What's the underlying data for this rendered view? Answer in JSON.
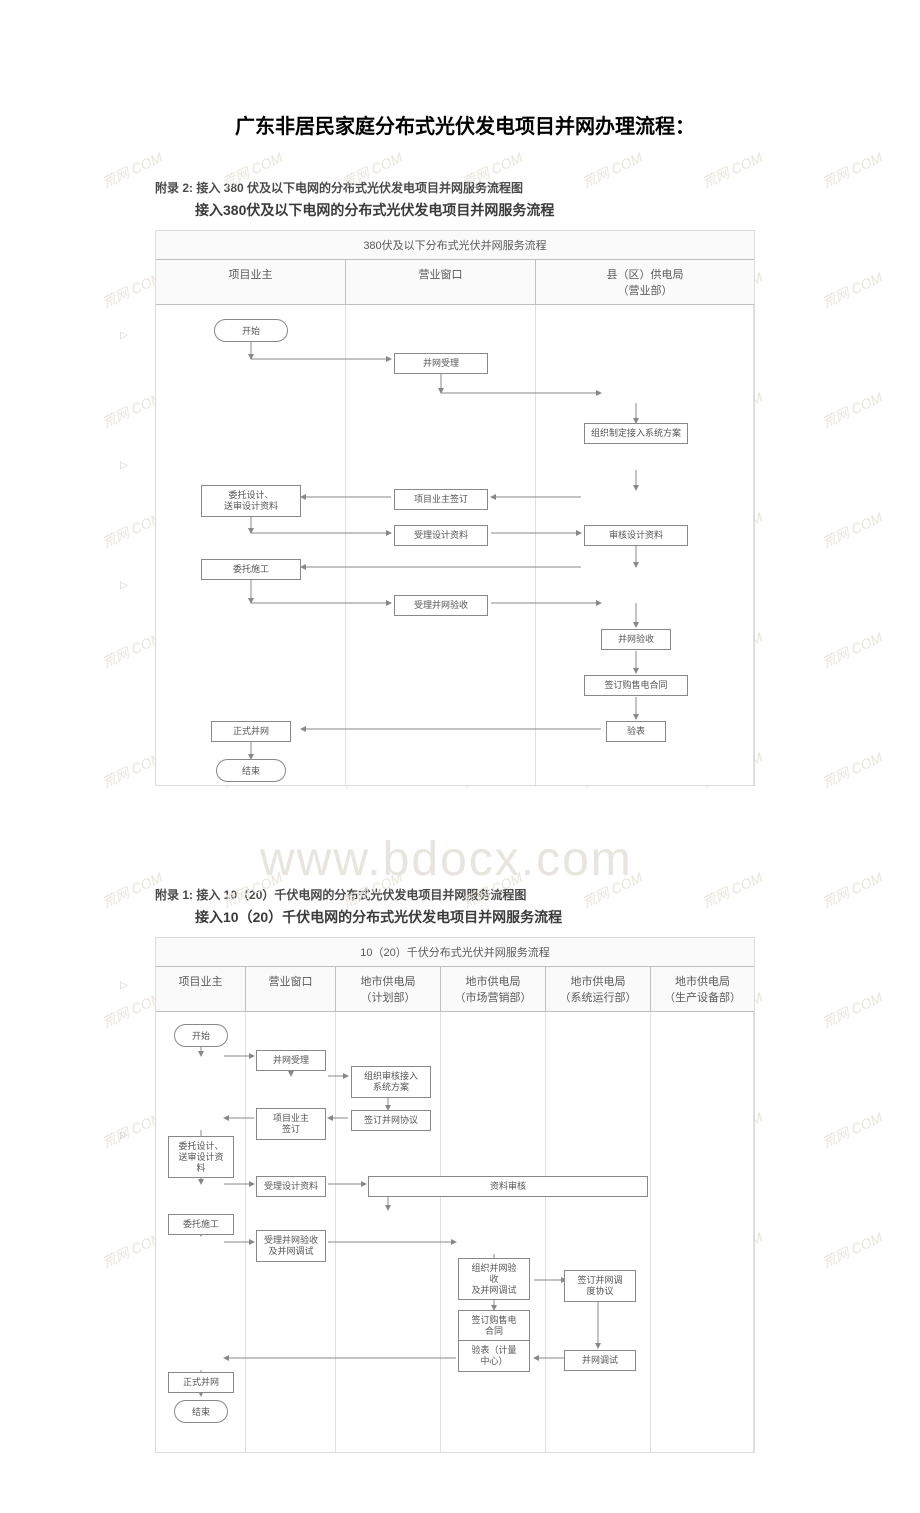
{
  "page_title": "广东非居民家庭分布式光伏发电项目并网办理流程：",
  "big_watermark": "www.bdocx.com",
  "small_watermark": "荒网 COM",
  "chart1": {
    "attachment_caption": "附录 2: 接入 380 伏及以下电网的分布式光伏发电项目并网服务流程图",
    "title": "接入380伏及以下电网的分布式光伏发电项目并网服务流程",
    "header_band": "380伏及以下分布式光伏并网服务流程",
    "lanes": [
      "项目业主",
      "营业窗口",
      "县（区）供电局\n（营业部）"
    ],
    "lane_widths": [
      190,
      190,
      218
    ],
    "nodes": {
      "start": "开始",
      "bwsl": "并网受理",
      "zzzd": "组织制定接入系统方案",
      "wtsj": "委托设计、\n送审设计资料",
      "xmyz": "项目业主签订",
      "slsj": "受理设计资料",
      "shsj": "审核设计资料",
      "wtsg": "委托施工",
      "slys": "受理并网验收",
      "bwys": "并网验收",
      "qdht": "签订购售电合同",
      "yb": "验表",
      "zsbw": "正式并网",
      "end": "结束"
    }
  },
  "chart2": {
    "attachment_caption": "附录 1:  接入 10（20）千伏电网的分布式光伏发电项目并网服务流程图",
    "title": "接入10（20）千伏电网的分布式光伏发电项目并网服务流程",
    "header_band": "10（20）千伏分布式光伏并网服务流程",
    "lanes": [
      "项目业主",
      "营业窗口",
      "地市供电局\n（计划部）",
      "地市供电局\n（市场营销部）",
      "地市供电局\n（系统运行部）",
      "地市供电局\n（生产设备部）"
    ],
    "lane_widths": [
      90,
      90,
      105,
      105,
      105,
      103
    ],
    "nodes": {
      "start": "开始",
      "bwsl": "并网受理",
      "zzsh": "组织审核接入\n系统方案",
      "xmyz": "项目业主\n签订",
      "qd_xy": "签订并网协议",
      "wtsj": "委托设计、\n送审设计资\n料",
      "slsj": "受理设计资料",
      "zlsh": "资料审核",
      "wtsg": "委托施工",
      "slys": "受理并网验收\n及并网调试",
      "zzys": "组织并网验\n收\n及并网调试",
      "qdht": "签订购售电\n合同",
      "qdtd": "签订并网调\n度协议",
      "ybzx": "验表（计量\n中心）",
      "bwts": "并网调试",
      "zsbw": "正式并网",
      "end": "结束"
    }
  },
  "colors": {
    "border": "#bfbfbf",
    "text": "#555555",
    "watermark": "#ebe4d9",
    "big_wm": "#e8e4de",
    "arrow": "#888888"
  }
}
